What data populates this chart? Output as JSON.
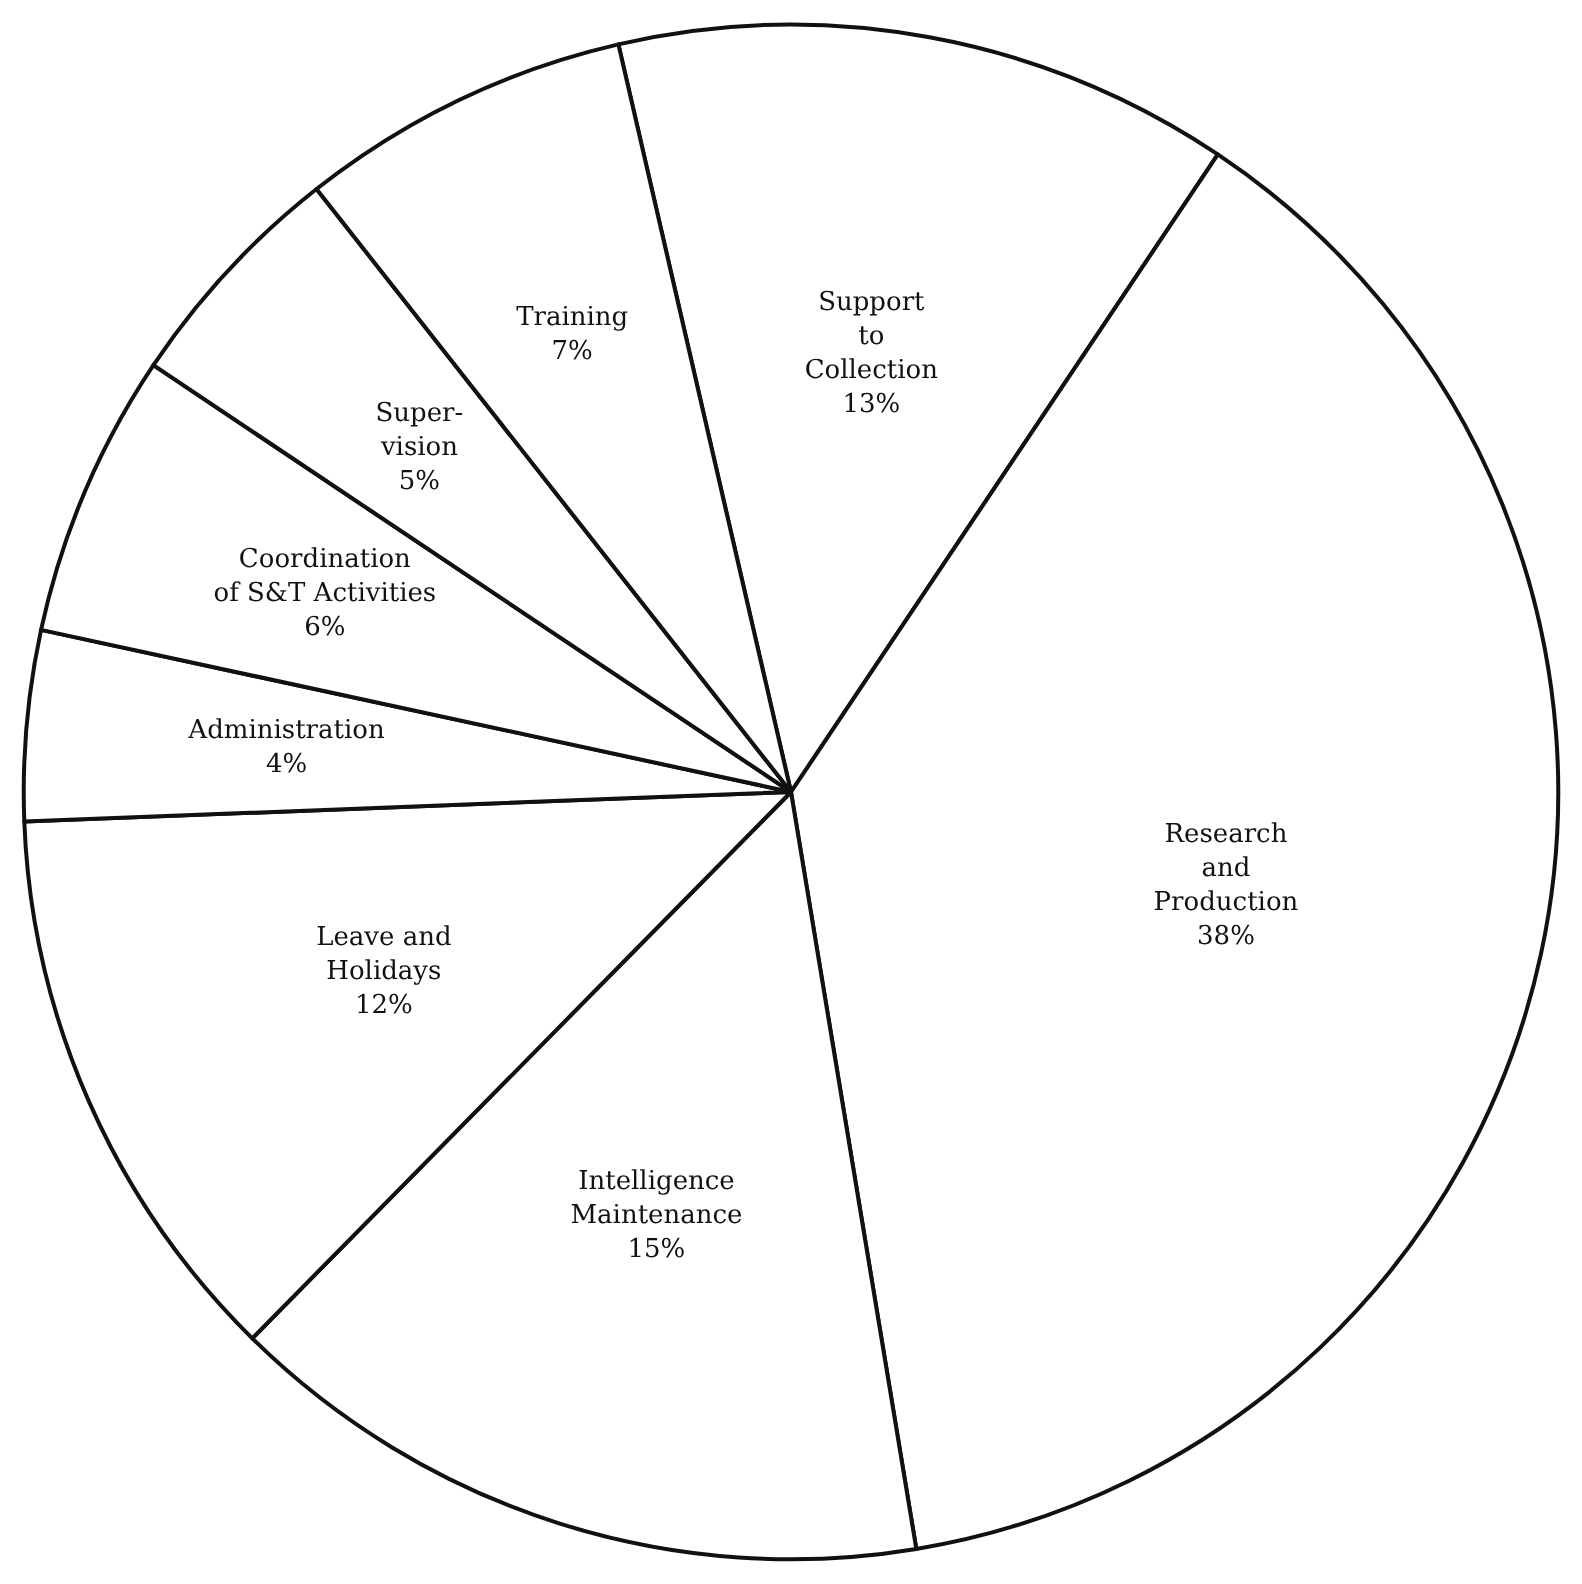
{
  "chart_data": {
    "type": "pie",
    "categories": [
      "Support\nto\nCollection",
      "Research\nand\nProduction",
      "Intelligence\nMaintenance",
      "Leave and\nHolidays",
      "Administration",
      "Coordination\nof S&T Activities",
      "Super-\nvision",
      "Training"
    ],
    "values": [
      13,
      38,
      15,
      12,
      4,
      6,
      5,
      7
    ],
    "colors": [
      "#ffffff",
      "#ffffff",
      "#ffffff",
      "#ffffff",
      "#ffffff",
      "#ffffff",
      "#ffffff",
      "#ffffff"
    ],
    "value_labels": [
      "13%",
      "38%",
      "15%",
      "12%",
      "4%",
      "6%",
      "5%",
      "7%"
    ]
  }
}
